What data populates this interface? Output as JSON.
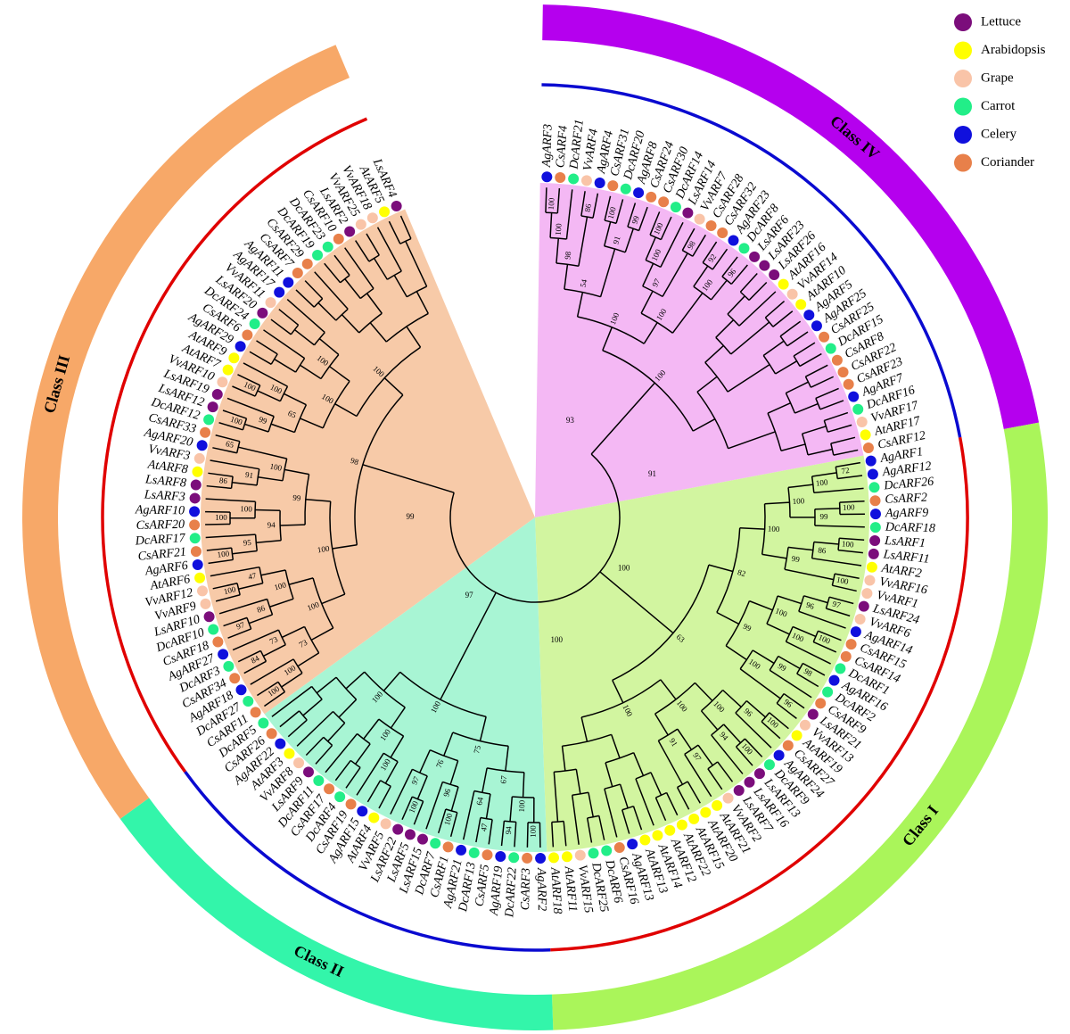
{
  "legend": [
    {
      "label": "Lettuce",
      "color": "#7b0d7b"
    },
    {
      "label": "Arabidopsis",
      "color": "#ffff00"
    },
    {
      "label": "Grape",
      "color": "#f9c4a8"
    },
    {
      "label": "Carrot",
      "color": "#22ee88"
    },
    {
      "label": "Celery",
      "color": "#1010dd"
    },
    {
      "label": "Coriander",
      "color": "#e8804a"
    }
  ],
  "classes": [
    {
      "label": "Class IV",
      "band_color": "#b500ee",
      "ring_color": "#0a0ad0",
      "shade": "#f4b8f4",
      "leaves": [
        "AgARF3",
        "CsARF4",
        "DcARF21",
        "VvARF4",
        "AgARF4",
        "CsARF31",
        "DcARF20",
        "AgARF8",
        "CsARF24",
        "CsARF30",
        "DcARF14",
        "LsARF14",
        "VvARF7",
        "CsARF28",
        "CsARF32",
        "AgARF23",
        "DcARF8",
        "LsARF6",
        "LsARF23",
        "LsARF26",
        "AtARF16",
        "VvARF14",
        "AtARF10",
        "AgARF5",
        "AgARF25",
        "CsARF25",
        "DcARF15",
        "CsARF8",
        "CsARF22",
        "CsARF23",
        "AgARF7",
        "DcARF16",
        "VvARF17",
        "AtARF17",
        "CsARF12"
      ],
      "bootstrap": [
        100,
        100,
        54,
        98,
        100,
        100,
        86,
        91,
        100,
        99,
        100,
        97,
        100,
        100,
        98,
        100,
        92,
        96
      ]
    },
    {
      "label": "Class I",
      "band_color": "#aaf55a",
      "ring_color": "#e00000",
      "shade": "#d2f5a0",
      "leaves": [
        "AgARF1",
        "AgARF12",
        "DcARF26",
        "CsARF2",
        "AgARF9",
        "DcARF18",
        "LsARF1",
        "LsARF11",
        "AtARF2",
        "VvARF16",
        "VvARF1",
        "LsARF24",
        "VvARF6",
        "AgARF14",
        "CsARF15",
        "CsARF14",
        "DcARF1",
        "AgARF16",
        "DcARF2",
        "CsARF9",
        "LsARF21",
        "VvARF13",
        "AtARF19",
        "CsARF27",
        "AgARF24",
        "DcARF9",
        "LsARF13",
        "LsARF16",
        "LsARF7",
        "VvARF2",
        "AtARF21",
        "AtARF20",
        "AtARF15",
        "AtARF22",
        "AtARF12",
        "AtARF14",
        "AtARF13",
        "AgARF13",
        "CsARF16",
        "DcARF6",
        "DcARF25",
        "VvARF15",
        "AtARF11",
        "AtARF18"
      ],
      "bootstrap": [
        63,
        82,
        100,
        100,
        100,
        72,
        99,
        100,
        99,
        86,
        100,
        100,
        99,
        100,
        96,
        97,
        100,
        100,
        100,
        99,
        98,
        96,
        100,
        100,
        100,
        96,
        100,
        94,
        100,
        91,
        97
      ]
    },
    {
      "label": "Class II",
      "band_color": "#33f5aa",
      "ring_color": "#0a0ad0",
      "shade": "#a8f5d4",
      "leaves": [
        "AgARF2",
        "CsARF3",
        "DcARF22",
        "AgARF19",
        "CsARF5",
        "DcARF13",
        "AgARF21",
        "CsARF1",
        "DcARF7",
        "LsARF15",
        "LsARF5",
        "LsARF22",
        "VvARF5",
        "AtARF4",
        "AgARF15",
        "CsARF19",
        "DcARF4",
        "CsARF17",
        "DcARF11",
        "LsARF9",
        "VvARF8",
        "AtARF3",
        "AgARF22",
        "CsARF26",
        "DcARF5"
      ],
      "bootstrap": [
        100,
        75,
        67,
        100,
        100,
        94,
        64,
        47,
        76,
        96,
        100,
        97,
        100,
        100,
        100,
        100
      ]
    },
    {
      "label": "Class III",
      "band_color": "#f7a868",
      "ring_color": "#e00000",
      "shade": "#f7caa8",
      "leaves": [
        "CsARF11",
        "DcARF27",
        "AgARF18",
        "CsARF34",
        "DcARF3",
        "AgARF27",
        "CsARF18",
        "DcARF10",
        "LsARF10",
        "VvARF9",
        "VvARF12",
        "AtARF6",
        "AgARF6",
        "CsARF21",
        "DcARF17",
        "CsARF20",
        "AgARF10",
        "LsARF3",
        "LsARF8",
        "AtARF8",
        "VvARF3",
        "AgARF20",
        "CsARF33",
        "DcARF12",
        "LsARF12",
        "LsARF19",
        "VvARF10",
        "AtARF7",
        "AtARF9",
        "AgARF29",
        "CsARF6",
        "DcARF24",
        "LsARF20",
        "VvARF11",
        "AgARF17",
        "AgARF11",
        "CsARF7",
        "CsARF29",
        "DcARF19",
        "DcARF23",
        "CsARF10",
        "LsARF2",
        "VvARF25",
        "VvARF18",
        "AtARF5",
        "LsARF4"
      ],
      "bootstrap": [
        98,
        100,
        100,
        73,
        100,
        100,
        73,
        84,
        100,
        86,
        97,
        47,
        100,
        99,
        94,
        95,
        100,
        100,
        100,
        100,
        91,
        86,
        65,
        100,
        100,
        65,
        99,
        100,
        100,
        100,
        100
      ]
    }
  ],
  "root_bootstrap": [
    93,
    91,
    100,
    100,
    97,
    99
  ]
}
